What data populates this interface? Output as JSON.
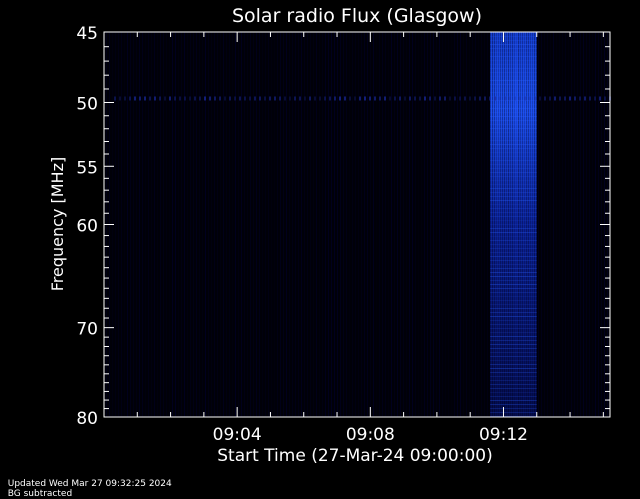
{
  "chart_data": {
    "type": "heatmap",
    "title": "Solar radio Flux (Glasgow)",
    "xlabel": "Start Time (27-Mar-24 09:00:00)",
    "ylabel": "Frequency [MHz]",
    "x_unit": "minutes after 09:00:00",
    "xlim": [
      0,
      15.2
    ],
    "x_ticks": [
      {
        "value": 4,
        "label": "09:04"
      },
      {
        "value": 8,
        "label": "09:08"
      },
      {
        "value": 12,
        "label": "09:12"
      }
    ],
    "y_scale": "log",
    "ylim": [
      45,
      80
    ],
    "y_ticks": [
      {
        "value": 45,
        "label": "45"
      },
      {
        "value": 50,
        "label": "50"
      },
      {
        "value": 55,
        "label": "55"
      },
      {
        "value": 60,
        "label": "60"
      },
      {
        "value": 70,
        "label": "70"
      },
      {
        "value": 80,
        "label": "80"
      }
    ],
    "y_minor_ticks": [
      46,
      47,
      48,
      49,
      51,
      52,
      53,
      54,
      56,
      57,
      58,
      59,
      61,
      62,
      63,
      64,
      65,
      66,
      67,
      68,
      69,
      71,
      72,
      73,
      74,
      75,
      76,
      77,
      78,
      79
    ],
    "x_minor_ticks": [
      1,
      2,
      3,
      5,
      6,
      7,
      9,
      10,
      11,
      13,
      14,
      15
    ],
    "colormap": {
      "low": "#000000",
      "mid": "#000060",
      "high": "#1a4dff"
    },
    "features": [
      {
        "name": "burst",
        "x_start": 11.6,
        "x_end": 13.0,
        "freq_start": 45,
        "freq_end": 80,
        "peak_freq": 50,
        "intensity": "high"
      },
      {
        "name": "interference-line",
        "x_start": 0.3,
        "x_end": 15.2,
        "freq": 49.7,
        "intensity": "low"
      }
    ]
  },
  "footer": {
    "updated": "Updated Wed Mar 27 09:32:25 2024",
    "note": "BG subtracted"
  },
  "colors": {
    "background": "#000000",
    "axes": "#ffffff",
    "text": "#ffffff"
  }
}
